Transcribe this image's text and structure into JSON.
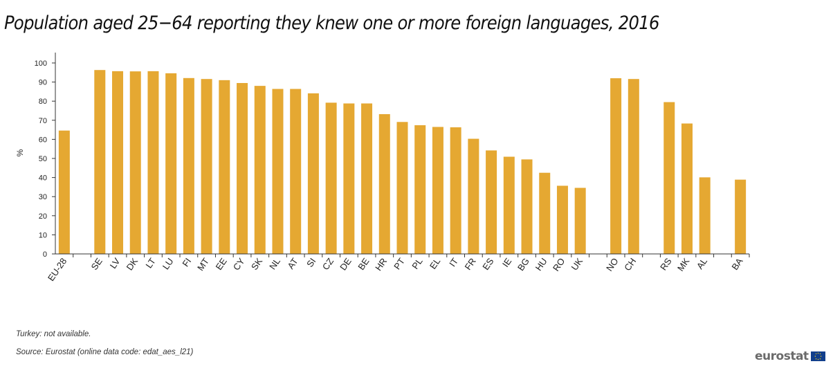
{
  "title": "Population aged 25−64 reporting they knew one or more foreign languages, 2016",
  "notes": {
    "note1": "Turkey: not available.",
    "note2": "Source: Eurostat (online data code: edat_aes_l21)"
  },
  "logo": {
    "text": "eurostat",
    "flag_icon": "eu-flag-icon"
  },
  "colors": {
    "bar": "#E5A832",
    "axis": "#333333"
  },
  "chart_data": {
    "type": "bar",
    "title": "Population aged 25−64 reporting they knew one or more foreign languages, 2016",
    "ylabel": "%",
    "xlabel": "",
    "ylim": [
      0,
      100
    ],
    "yticks": [
      0,
      10,
      20,
      30,
      40,
      50,
      60,
      70,
      80,
      90,
      100
    ],
    "grid": false,
    "categories": [
      "EU-28",
      "",
      "SE",
      "LV",
      "DK",
      "LT",
      "LU",
      "FI",
      "MT",
      "EE",
      "CY",
      "SK",
      "NL",
      "AT",
      "SI",
      "CZ",
      "DE",
      "BE",
      "HR",
      "PT",
      "PL",
      "EL",
      "IT",
      "FR",
      "ES",
      "IE",
      "BG",
      "HU",
      "RO",
      "UK",
      "",
      "NO",
      "CH",
      "",
      "RS",
      "MK",
      "AL",
      "",
      "BA"
    ],
    "values": [
      64.6,
      null,
      96.3,
      95.7,
      95.6,
      95.7,
      94.6,
      92.1,
      91.6,
      91.0,
      89.5,
      88.0,
      86.4,
      86.4,
      84.1,
      79.2,
      78.8,
      78.8,
      73.2,
      69.1,
      67.4,
      66.5,
      66.3,
      60.3,
      54.2,
      50.9,
      49.5,
      42.5,
      35.7,
      34.6,
      null,
      92.0,
      91.6,
      null,
      79.5,
      68.3,
      40.1,
      null,
      38.9
    ]
  }
}
